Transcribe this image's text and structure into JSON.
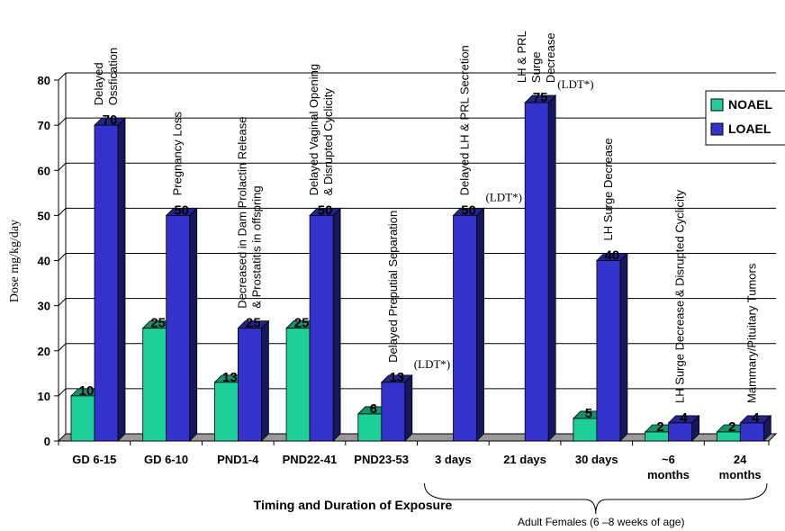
{
  "chart_data": {
    "type": "bar",
    "categories": [
      [
        "GD 6-15"
      ],
      [
        "GD 6-10"
      ],
      [
        "PND1-4"
      ],
      [
        "PND22-41"
      ],
      [
        "PND23-53"
      ],
      [
        "3 days"
      ],
      [
        "21 days"
      ],
      [
        "30 days"
      ],
      [
        "~6",
        "months"
      ],
      [
        "24",
        "months"
      ]
    ],
    "series": [
      {
        "name": "NOAEL",
        "color": "#1fcf9a",
        "values": [
          10,
          25,
          13,
          25,
          6,
          null,
          null,
          5,
          2,
          2
        ]
      },
      {
        "name": "LOAEL",
        "color": "#3333cc",
        "values": [
          70,
          50,
          25,
          50,
          13,
          50,
          75,
          40,
          4,
          4
        ]
      }
    ],
    "ylabel": "Dose mg/kg/day",
    "xlabel": "Timing and Duration of Exposure",
    "ylim": [
      0,
      80
    ],
    "yticks": [
      0,
      10,
      20,
      30,
      40,
      50,
      60,
      70,
      80
    ],
    "legend": "top-right",
    "annotations": [
      {
        "category": 0,
        "lines": [
          "Delayed",
          "Ossfication"
        ]
      },
      {
        "category": 1,
        "lines": [
          "Pregnancy Loss"
        ]
      },
      {
        "category": 2,
        "lines": [
          "Decreased in Dam Prolactin Release",
          "& Prostatitis in offspring"
        ]
      },
      {
        "category": 3,
        "lines": [
          "Delayed Vaginal Opening",
          "&  Disrupted Cyclicity"
        ]
      },
      {
        "category": 4,
        "lines": [
          "Delayed Preputial Separation"
        ]
      },
      {
        "category": 5,
        "lines": [
          "Delayed LH & PRL  Secretion"
        ]
      },
      {
        "category": 6,
        "lines": [
          "LH & PRL",
          "Surge",
          "Decrease"
        ]
      },
      {
        "category": 7,
        "lines": [
          "LH   Surge Decrease"
        ]
      },
      {
        "category": 8,
        "lines": [
          "LH   Surge Decrease & Disrupted Cyclicity"
        ]
      },
      {
        "category": 9,
        "lines": [
          "Mammary/Pituitary Tumors"
        ]
      }
    ],
    "ldt_label": "(LDT*)",
    "ldt_categories": [
      4,
      5,
      6
    ],
    "bracket_label": "Adult Females (6 –8 weeks of age)"
  }
}
